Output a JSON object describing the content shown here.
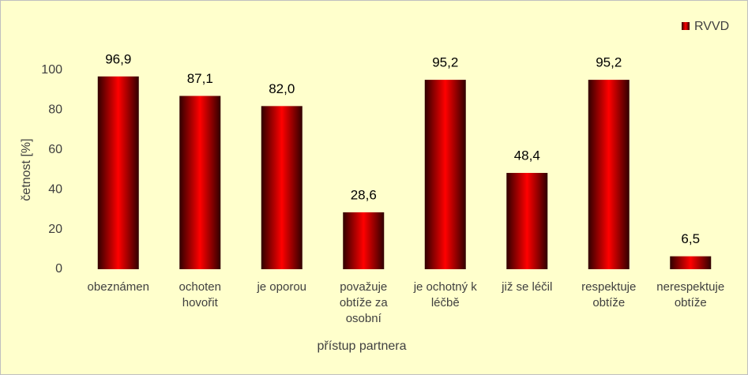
{
  "chart_data": {
    "type": "bar",
    "y_label": "četnost [%]",
    "x_label": "přístup partnera",
    "categories": [
      "obeznámen",
      "ochoten hovořit",
      "je oporou",
      "považuje obtíže za osobní",
      "je ochotný k léčbě",
      "již se léčil",
      "respektuje obtíže",
      "nerespektuje obtíže"
    ],
    "series": [
      {
        "name": "RVVD",
        "color": "#ff0000",
        "values": [
          96.9,
          87.1,
          82.0,
          28.6,
          95.2,
          48.4,
          95.2,
          6.5
        ],
        "value_labels": [
          "96,9",
          "87,1",
          "82,0",
          "28,6",
          "95,2",
          "48,4",
          "95,2",
          "6,5"
        ]
      }
    ],
    "ylim": [
      0,
      100
    ],
    "yticks": [
      0,
      20,
      40,
      60,
      80,
      100
    ],
    "grid": false,
    "legend": "top-right"
  }
}
